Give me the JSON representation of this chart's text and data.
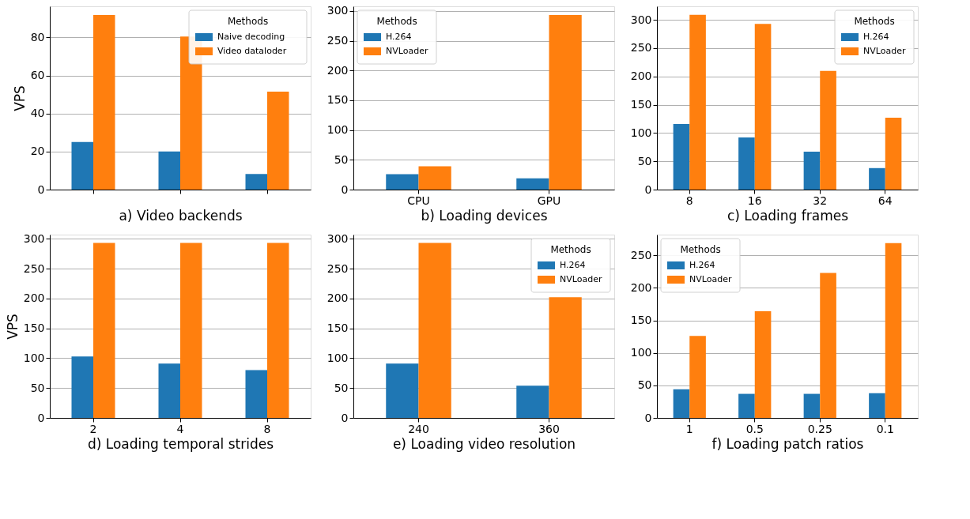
{
  "chart_data": [
    {
      "type": "bar",
      "xlabel": "a) Video backends",
      "ylabel": "VPS",
      "categories": [
        null,
        null,
        null
      ],
      "series": [
        {
          "name": "Naive decoding",
          "color": "#1f77b4",
          "values": [
            25,
            20.1,
            8.2
          ]
        },
        {
          "name": "Video dataloder",
          "color": "#ff7f0e",
          "values": [
            91.8,
            80.5,
            51.5
          ]
        }
      ],
      "ylim": [
        0,
        96.4
      ],
      "yticks": [
        0,
        20,
        40,
        60,
        80
      ],
      "grid": "y",
      "legend": "top right",
      "legend_title": "Methods"
    },
    {
      "type": "bar",
      "xlabel": "b) Loading devices",
      "categories": [
        "CPU",
        "GPU"
      ],
      "series": [
        {
          "name": "H.264",
          "color": "#1f77b4",
          "values": [
            26,
            19
          ]
        },
        {
          "name": "NVLoader",
          "color": "#ff7f0e",
          "values": [
            39,
            293
          ]
        }
      ],
      "ylim": [
        0,
        307.7
      ],
      "yticks": [
        0,
        50,
        100,
        150,
        200,
        250,
        300
      ],
      "grid": "y",
      "legend": "top left",
      "legend_title": "Methods"
    },
    {
      "type": "bar",
      "xlabel": "c) Loading frames",
      "categories": [
        "8",
        "16",
        "32",
        "64"
      ],
      "series": [
        {
          "name": "H.264",
          "color": "#1f77b4",
          "values": [
            116,
            92,
            67,
            38
          ]
        },
        {
          "name": "NVLoader",
          "color": "#ff7f0e",
          "values": [
            309,
            293,
            210,
            127
          ]
        }
      ],
      "ylim": [
        0,
        324
      ],
      "yticks": [
        0,
        50,
        100,
        150,
        200,
        250,
        300
      ],
      "grid": "y",
      "legend": "top right",
      "legend_title": "Methods"
    },
    {
      "type": "bar",
      "xlabel": "d) Loading temporal strides",
      "ylabel": "VPS",
      "categories": [
        "2",
        "4",
        "8"
      ],
      "series": [
        {
          "color": "#1f77b4",
          "values": [
            103,
            91,
            80
          ]
        },
        {
          "color": "#ff7f0e",
          "values": [
            293,
            293,
            293
          ]
        }
      ],
      "ylim": [
        0,
        307
      ],
      "yticks": [
        0,
        50,
        100,
        150,
        200,
        250,
        300
      ],
      "grid": "y"
    },
    {
      "type": "bar",
      "xlabel": "e) Loading video resolution",
      "categories": [
        "240",
        "360"
      ],
      "series": [
        {
          "name": "H.264",
          "color": "#1f77b4",
          "values": [
            91,
            54
          ]
        },
        {
          "name": "NVLoader",
          "color": "#ff7f0e",
          "values": [
            293,
            202
          ]
        }
      ],
      "ylim": [
        0,
        307
      ],
      "yticks": [
        0,
        50,
        100,
        150,
        200,
        250,
        300
      ],
      "grid": "y",
      "legend": "top right",
      "legend_title": "Methods"
    },
    {
      "type": "bar",
      "xlabel": "f) Loading patch ratios",
      "categories": [
        "1",
        "0.5",
        "0.25",
        "0.1"
      ],
      "series": [
        {
          "name": "H.264",
          "color": "#1f77b4",
          "values": [
            44,
            37,
            37,
            38
          ]
        },
        {
          "name": "NVLoader",
          "color": "#ff7f0e",
          "values": [
            126,
            164,
            223,
            269
          ]
        }
      ],
      "ylim": [
        0,
        282
      ],
      "yticks": [
        0,
        50,
        100,
        150,
        200,
        250
      ],
      "grid": "y",
      "legend": "top left",
      "legend_title": "Methods"
    }
  ]
}
